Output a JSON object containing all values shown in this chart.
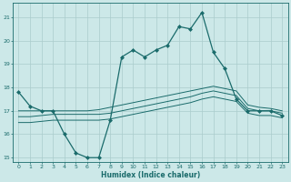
{
  "xlabel": "Humidex (Indice chaleur)",
  "bg_color": "#cce8e8",
  "grid_color": "#aacccc",
  "line_color": "#1a6b6b",
  "xlim": [
    -0.5,
    23.5
  ],
  "ylim": [
    14.8,
    21.6
  ],
  "yticks": [
    15,
    16,
    17,
    18,
    19,
    20,
    21
  ],
  "xticks": [
    0,
    1,
    2,
    3,
    4,
    5,
    6,
    7,
    8,
    9,
    10,
    11,
    12,
    13,
    14,
    15,
    16,
    17,
    18,
    19,
    20,
    21,
    22,
    23
  ],
  "line1_x": [
    0,
    1,
    2,
    3,
    4,
    5,
    6,
    7,
    8,
    9,
    10,
    11,
    12,
    13,
    14,
    15,
    16,
    17,
    18,
    19,
    20,
    21,
    22,
    23
  ],
  "line1_y": [
    17.8,
    17.2,
    17.0,
    17.0,
    16.0,
    15.2,
    15.0,
    15.0,
    16.6,
    19.3,
    19.6,
    19.3,
    19.6,
    19.8,
    20.6,
    20.5,
    21.2,
    19.5,
    18.8,
    17.5,
    17.0,
    17.0,
    17.0,
    16.8
  ],
  "line2_x": [
    0,
    1,
    2,
    3,
    4,
    5,
    6,
    7,
    8,
    9,
    10,
    11,
    12,
    13,
    14,
    15,
    16,
    17,
    18,
    19,
    20,
    21,
    22,
    23
  ],
  "line2_y": [
    17.0,
    17.0,
    17.0,
    17.0,
    17.0,
    17.0,
    17.0,
    17.05,
    17.15,
    17.25,
    17.35,
    17.45,
    17.55,
    17.65,
    17.75,
    17.85,
    17.95,
    18.05,
    17.95,
    17.85,
    17.25,
    17.15,
    17.1,
    17.0
  ],
  "line3_x": [
    0,
    1,
    2,
    3,
    4,
    5,
    6,
    7,
    8,
    9,
    10,
    11,
    12,
    13,
    14,
    15,
    16,
    17,
    18,
    19,
    20,
    21,
    22,
    23
  ],
  "line3_y": [
    16.75,
    16.75,
    16.8,
    16.85,
    16.85,
    16.85,
    16.85,
    16.85,
    16.9,
    17.0,
    17.1,
    17.2,
    17.3,
    17.4,
    17.5,
    17.6,
    17.75,
    17.85,
    17.75,
    17.65,
    17.1,
    17.0,
    17.0,
    16.9
  ],
  "line4_x": [
    0,
    1,
    2,
    3,
    4,
    5,
    6,
    7,
    8,
    9,
    10,
    11,
    12,
    13,
    14,
    15,
    16,
    17,
    18,
    19,
    20,
    21,
    22,
    23
  ],
  "line4_y": [
    16.5,
    16.5,
    16.55,
    16.6,
    16.6,
    16.6,
    16.6,
    16.6,
    16.65,
    16.75,
    16.85,
    16.95,
    17.05,
    17.15,
    17.25,
    17.35,
    17.5,
    17.6,
    17.5,
    17.4,
    16.9,
    16.8,
    16.8,
    16.7
  ]
}
